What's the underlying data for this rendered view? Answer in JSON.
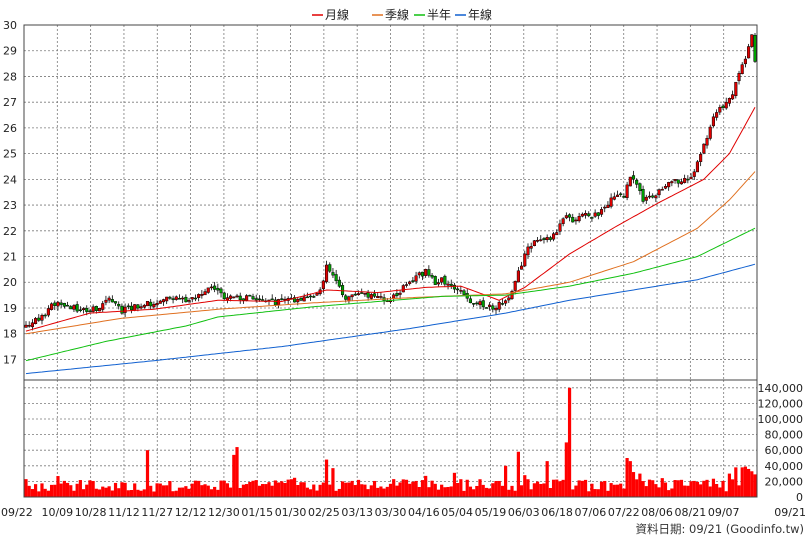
{
  "chart_data": {
    "type": "candlestick",
    "legend": [
      {
        "name": "月線",
        "color": "#e00000"
      },
      {
        "name": "季線",
        "color": "#e07020"
      },
      {
        "name": "半年",
        "color": "#10c010"
      },
      {
        "name": "年線",
        "color": "#1060d0"
      }
    ],
    "legend_position": "top-center",
    "colors": {
      "up": "#e00000",
      "down": "#00a000",
      "grid": "#7a7a7a",
      "volume": "#ff0000"
    },
    "price_axis": {
      "min": 16.2,
      "max": 30,
      "ticks": [
        17,
        18,
        19,
        20,
        21,
        22,
        23,
        24,
        25,
        26,
        27,
        28,
        29,
        30
      ]
    },
    "volume_axis": {
      "min": 0,
      "max": 150000,
      "ticks": [
        0,
        20000,
        40000,
        60000,
        80000,
        100000,
        120000,
        140000
      ],
      "tick_labels": [
        "0",
        "20,000",
        "40,000",
        "60,000",
        "80,000",
        "100,000",
        "120,000",
        "140,000"
      ]
    },
    "date_labels": [
      "09/22",
      "10/09",
      "10/28",
      "11/12",
      "11/27",
      "12/12",
      "12/30",
      "01/15",
      "01/30",
      "02/25",
      "03/13",
      "03/30",
      "04/16",
      "05/04",
      "05/19",
      "06/03",
      "06/18",
      "07/06",
      "07/22",
      "08/06",
      "08/21",
      "09/07",
      "09/21"
    ],
    "close_path": [
      [
        0,
        18.3
      ],
      [
        5,
        18.7
      ],
      [
        10,
        19.3
      ],
      [
        13,
        19.1
      ],
      [
        17,
        18.9
      ],
      [
        22,
        19.0
      ],
      [
        26,
        19.3
      ],
      [
        30,
        18.9
      ],
      [
        35,
        19.1
      ],
      [
        40,
        19.2
      ],
      [
        45,
        19.4
      ],
      [
        50,
        19.3
      ],
      [
        55,
        19.5
      ],
      [
        58,
        19.9
      ],
      [
        62,
        19.4
      ],
      [
        66,
        19.4
      ],
      [
        70,
        19.4
      ],
      [
        74,
        19.3
      ],
      [
        78,
        19.2
      ],
      [
        82,
        19.3
      ],
      [
        86,
        19.3
      ],
      [
        89,
        19.4
      ],
      [
        92,
        19.7
      ],
      [
        94,
        20.6
      ],
      [
        96,
        20.2
      ],
      [
        98,
        19.8
      ],
      [
        100,
        19.4
      ],
      [
        104,
        19.6
      ],
      [
        108,
        19.5
      ],
      [
        112,
        19.3
      ],
      [
        116,
        19.5
      ],
      [
        119,
        19.9
      ],
      [
        122,
        20.2
      ],
      [
        125,
        20.4
      ],
      [
        128,
        20.0
      ],
      [
        130,
        20.1
      ],
      [
        133,
        19.9
      ],
      [
        136,
        19.7
      ],
      [
        139,
        19.3
      ],
      [
        143,
        19.1
      ],
      [
        146,
        19.0
      ],
      [
        149,
        19.2
      ],
      [
        151,
        19.5
      ],
      [
        153,
        20.0
      ],
      [
        155,
        20.7
      ],
      [
        157,
        21.3
      ],
      [
        159,
        21.6
      ],
      [
        162,
        21.6
      ],
      [
        165,
        21.8
      ],
      [
        167,
        22.2
      ],
      [
        169,
        22.6
      ],
      [
        171,
        22.3
      ],
      [
        173,
        22.5
      ],
      [
        175,
        22.7
      ],
      [
        177,
        22.5
      ],
      [
        179,
        22.7
      ],
      [
        181,
        23.0
      ],
      [
        183,
        23.2
      ],
      [
        185,
        23.5
      ],
      [
        187,
        23.4
      ],
      [
        189,
        24.0
      ],
      [
        191,
        23.8
      ],
      [
        193,
        23.2
      ],
      [
        195,
        23.3
      ],
      [
        197,
        23.4
      ],
      [
        199,
        23.6
      ],
      [
        201,
        23.8
      ],
      [
        203,
        23.9
      ],
      [
        205,
        24.0
      ],
      [
        207,
        23.9
      ],
      [
        209,
        24.4
      ],
      [
        211,
        25.0
      ],
      [
        213,
        25.7
      ],
      [
        215,
        26.4
      ],
      [
        217,
        26.7
      ],
      [
        219,
        27.0
      ],
      [
        221,
        27.3
      ],
      [
        223,
        28.2
      ],
      [
        225,
        28.7
      ],
      [
        226,
        29.2
      ],
      [
        227,
        29.6
      ],
      [
        228,
        28.6
      ]
    ],
    "volume_spikes": [
      {
        "i": 38,
        "v": 60000
      },
      {
        "i": 65,
        "v": 54000
      },
      {
        "i": 66,
        "v": 64000
      },
      {
        "i": 94,
        "v": 48000
      },
      {
        "i": 96,
        "v": 37000
      },
      {
        "i": 134,
        "v": 31000
      },
      {
        "i": 150,
        "v": 40000
      },
      {
        "i": 154,
        "v": 58000
      },
      {
        "i": 156,
        "v": 28000
      },
      {
        "i": 163,
        "v": 46000
      },
      {
        "i": 168,
        "v": 22000
      },
      {
        "i": 169,
        "v": 70000
      },
      {
        "i": 170,
        "v": 140000
      },
      {
        "i": 188,
        "v": 50000
      },
      {
        "i": 189,
        "v": 46000
      },
      {
        "i": 190,
        "v": 32000
      },
      {
        "i": 192,
        "v": 30000
      },
      {
        "i": 205,
        "v": 22000
      },
      {
        "i": 213,
        "v": 22000
      },
      {
        "i": 220,
        "v": 30000
      },
      {
        "i": 222,
        "v": 38000
      },
      {
        "i": 224,
        "v": 38000
      },
      {
        "i": 225,
        "v": 39000
      },
      {
        "i": 226,
        "v": 36000
      },
      {
        "i": 227,
        "v": 33000
      },
      {
        "i": 228,
        "v": 29000
      }
    ],
    "ma_lines": [
      {
        "name": "月線",
        "points": [
          [
            0,
            18.1
          ],
          [
            20,
            18.8
          ],
          [
            40,
            18.95
          ],
          [
            60,
            19.3
          ],
          [
            80,
            19.25
          ],
          [
            94,
            19.7
          ],
          [
            110,
            19.6
          ],
          [
            125,
            19.8
          ],
          [
            136,
            19.85
          ],
          [
            148,
            19.3
          ],
          [
            156,
            19.8
          ],
          [
            170,
            21.1
          ],
          [
            185,
            22.2
          ],
          [
            198,
            23.1
          ],
          [
            212,
            24.0
          ],
          [
            220,
            25.0
          ],
          [
            228,
            26.8
          ]
        ]
      },
      {
        "name": "季線",
        "points": [
          [
            0,
            18.0
          ],
          [
            30,
            18.6
          ],
          [
            60,
            18.95
          ],
          [
            90,
            19.2
          ],
          [
            120,
            19.4
          ],
          [
            150,
            19.55
          ],
          [
            170,
            20.0
          ],
          [
            190,
            20.8
          ],
          [
            210,
            22.1
          ],
          [
            220,
            23.2
          ],
          [
            228,
            24.3
          ]
        ]
      },
      {
        "name": "半年",
        "points": [
          [
            0,
            16.95
          ],
          [
            25,
            17.7
          ],
          [
            50,
            18.3
          ],
          [
            60,
            18.65
          ],
          [
            90,
            19.05
          ],
          [
            130,
            19.45
          ],
          [
            150,
            19.5
          ],
          [
            170,
            19.85
          ],
          [
            190,
            20.35
          ],
          [
            210,
            21.0
          ],
          [
            228,
            22.1
          ]
        ]
      },
      {
        "name": "年線",
        "points": [
          [
            0,
            16.45
          ],
          [
            40,
            16.95
          ],
          [
            80,
            17.5
          ],
          [
            120,
            18.2
          ],
          [
            150,
            18.8
          ],
          [
            170,
            19.3
          ],
          [
            190,
            19.7
          ],
          [
            210,
            20.1
          ],
          [
            228,
            20.7
          ]
        ]
      }
    ],
    "bars": 229
  },
  "footer": {
    "source_note": "資料日期: 09/21 (Goodinfo.tw)"
  }
}
